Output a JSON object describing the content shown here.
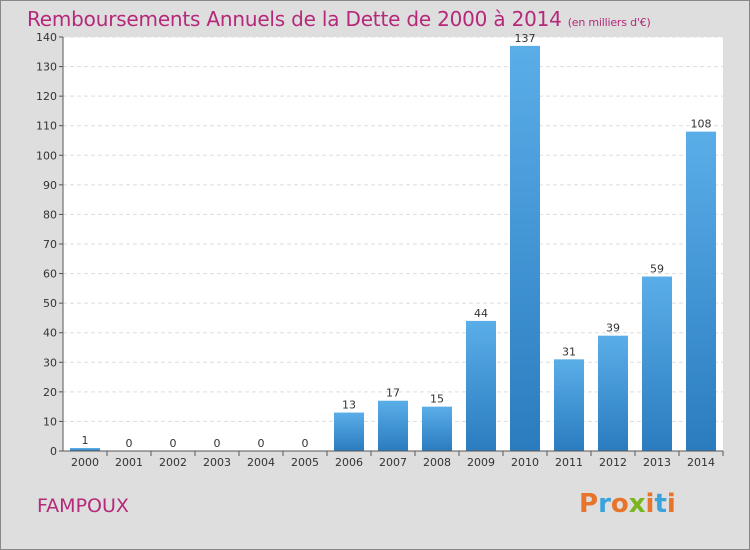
{
  "header": {
    "title": "Remboursements Annuels de la Dette de 2000 à 2014",
    "subtitle": "(en milliers d'€)"
  },
  "footer": {
    "commune": "FAMPOUX",
    "brand": "Proxiti"
  },
  "colors": {
    "background": "#dedede",
    "plot_background": "#ffffff",
    "title": "#b5287a",
    "bar_light": "#5aaee8",
    "bar_dark": "#2a7cbf",
    "brand_letters": [
      "#e8732b",
      "#3aa3dc",
      "#e8732b",
      "#7ab51d",
      "#e8732b",
      "#3aa3dc",
      "#e8732b"
    ]
  },
  "chart_data": {
    "type": "bar",
    "categories": [
      "2000",
      "2001",
      "2002",
      "2003",
      "2004",
      "2005",
      "2006",
      "2007",
      "2008",
      "2009",
      "2010",
      "2011",
      "2012",
      "2013",
      "2014"
    ],
    "values": [
      1,
      0,
      0,
      0,
      0,
      0,
      13,
      17,
      15,
      44,
      137,
      31,
      39,
      59,
      108
    ],
    "title": "Remboursements Annuels de la Dette de 2000 à 2014",
    "subtitle": "(en milliers d'€)",
    "xlabel": "",
    "ylabel": "",
    "ylim": [
      0,
      140
    ],
    "yticks": [
      0,
      10,
      20,
      30,
      40,
      50,
      60,
      70,
      80,
      90,
      100,
      110,
      120,
      130,
      140
    ],
    "grid": true,
    "legend": "none"
  }
}
